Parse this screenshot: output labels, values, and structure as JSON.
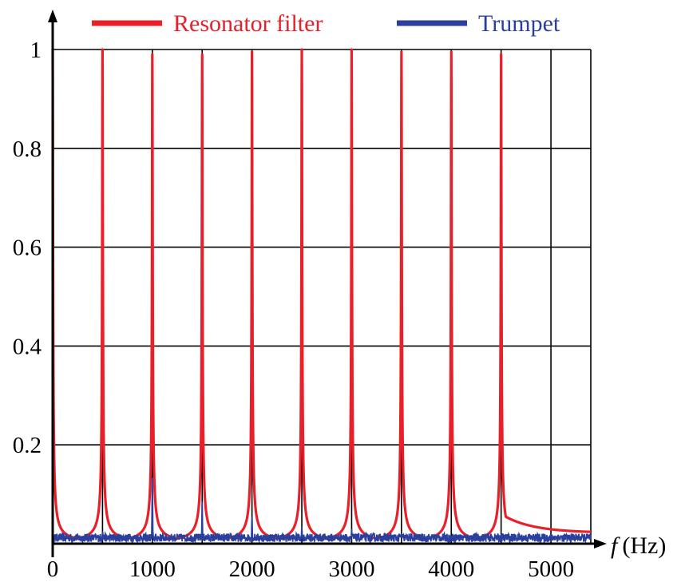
{
  "chart_data": {
    "type": "line",
    "legend": {
      "placement": "top",
      "entries": [
        {
          "label": "Resonator filter",
          "color": "#e8202a"
        },
        {
          "label": "Trumpet",
          "color": "#2a3f9e"
        }
      ]
    },
    "x_axis": {
      "label_symbol": "f",
      "label_unit": "(Hz)",
      "range": [
        0,
        5400
      ],
      "ticks": [
        0,
        1000,
        2000,
        3000,
        4000,
        5000
      ],
      "tick_labels": [
        "0",
        "1000",
        "2000",
        "3000",
        "4000",
        "5000"
      ],
      "gridlines": [
        0,
        500,
        1000,
        1500,
        2000,
        2500,
        3000,
        3500,
        4000,
        4500,
        5000,
        5400
      ]
    },
    "y_axis": {
      "range": [
        0,
        1.0
      ],
      "ticks": [
        0.2,
        0.4,
        0.6,
        0.8,
        1.0
      ],
      "tick_labels": [
        "0.2",
        "0.4",
        "0.6",
        "0.8",
        "1"
      ],
      "gridlines": [
        0.2,
        0.4,
        0.6,
        0.8,
        1.0
      ]
    },
    "grid": true,
    "series": [
      {
        "name": "Resonator filter",
        "color": "#e8202a",
        "kind": "resonance_peaks",
        "peaks": [
          {
            "f": 0,
            "amplitude": 1.0
          },
          {
            "f": 500,
            "amplitude": 1.0
          },
          {
            "f": 1000,
            "amplitude": 0.99
          },
          {
            "f": 1500,
            "amplitude": 0.99
          },
          {
            "f": 2000,
            "amplitude": 0.995
          },
          {
            "f": 2500,
            "amplitude": 1.0
          },
          {
            "f": 3000,
            "amplitude": 1.0
          },
          {
            "f": 3500,
            "amplitude": 0.995
          },
          {
            "f": 4000,
            "amplitude": 0.995
          },
          {
            "f": 4500,
            "amplitude": 0.99
          }
        ],
        "tail_end_value": 0.022
      },
      {
        "name": "Trumpet",
        "color": "#2a3f9e",
        "kind": "spectrum",
        "noise_floor": 0.012,
        "peaks": [
          {
            "f": 500,
            "amplitude": 0.03
          },
          {
            "f": 1000,
            "amplitude": 0.16
          },
          {
            "f": 1500,
            "amplitude": 0.085
          },
          {
            "f": 2000,
            "amplitude": 0.065
          },
          {
            "f": 2500,
            "amplitude": 0.04
          },
          {
            "f": 3000,
            "amplitude": 0.03
          },
          {
            "f": 3500,
            "amplitude": 0.025
          }
        ]
      }
    ]
  }
}
